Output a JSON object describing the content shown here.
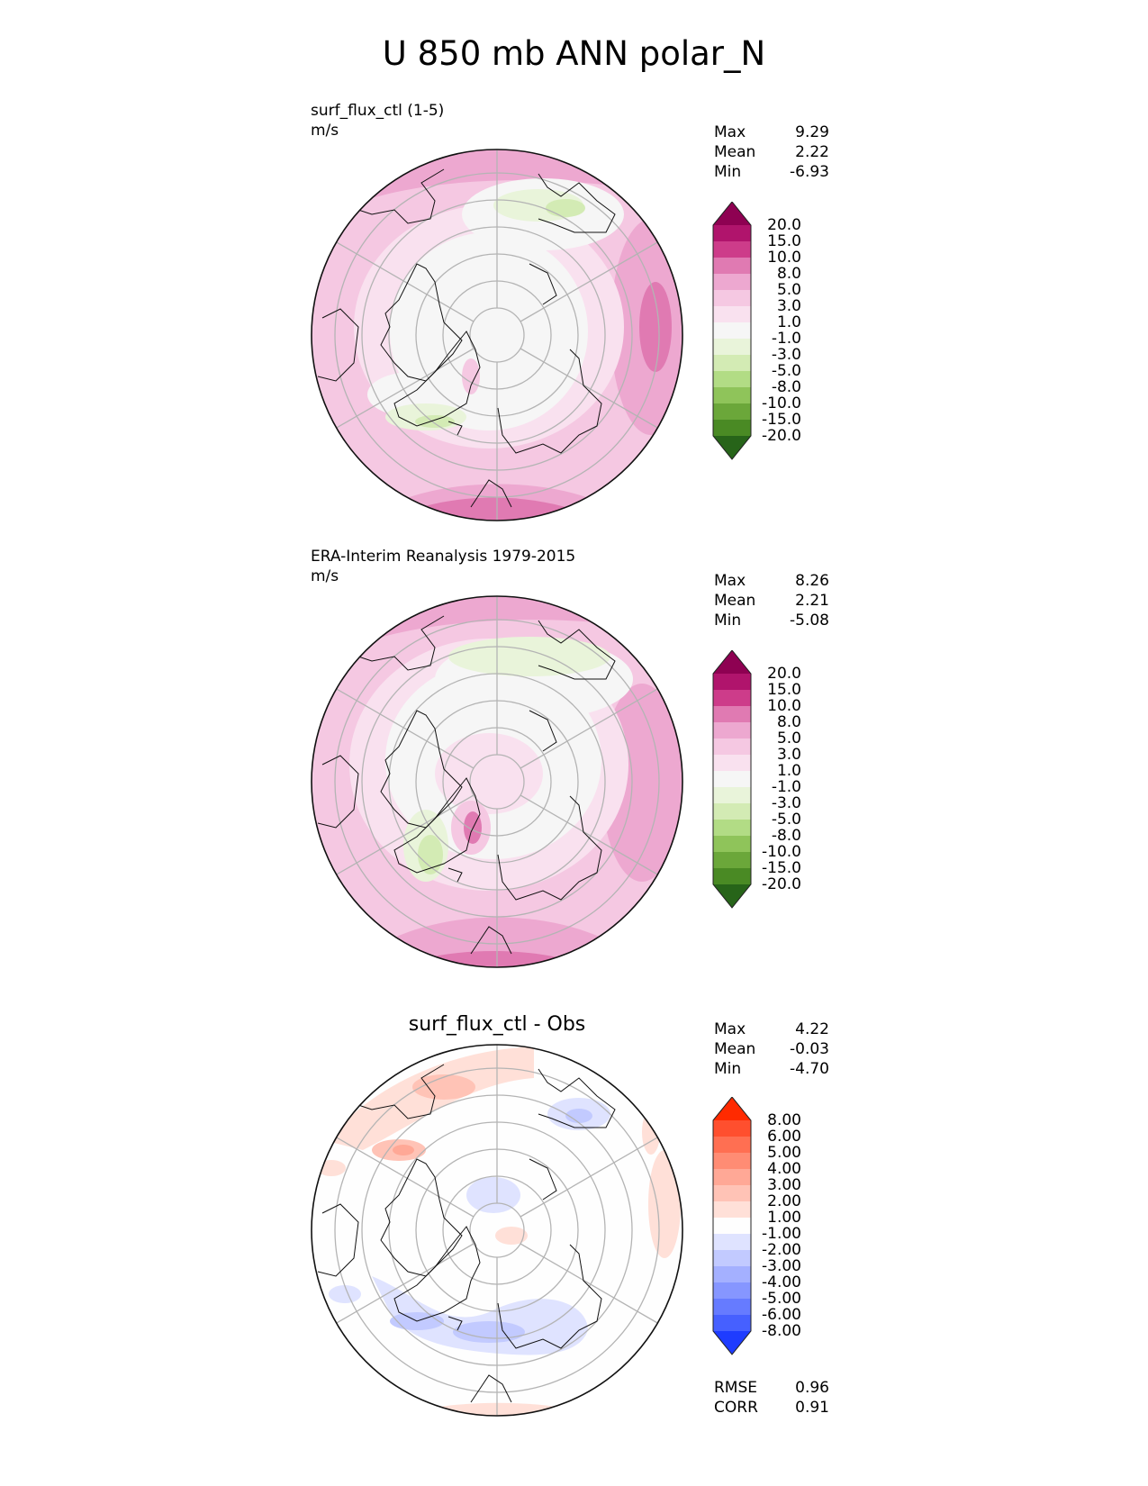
{
  "title": "U 850 mb ANN polar_N",
  "panels": [
    {
      "label": "surf_flux_ctl (1-5)",
      "units": "m/s",
      "stats": {
        "max_label": "Max",
        "max": "9.29",
        "mean_label": "Mean",
        "mean": "2.22",
        "min_label": "Min",
        "min": "-6.93"
      },
      "colorbar": {
        "ticks": [
          "20.0",
          "15.0",
          "10.0",
          "8.0",
          "5.0",
          "3.0",
          "1.0",
          "-1.0",
          "-3.0",
          "-5.0",
          "-8.0",
          "-10.0",
          "-15.0",
          "-20.0"
        ],
        "colors": [
          "#8e0152",
          "#b0146c",
          "#cd3c8a",
          "#e07ab2",
          "#eda8d0",
          "#f5c8e2",
          "#f9e1ef",
          "#f6f6f6",
          "#e9f4da",
          "#d3ebb4",
          "#b2dc85",
          "#8fc45a",
          "#6ba73a",
          "#4a8a24",
          "#276419"
        ]
      }
    },
    {
      "label": "ERA-Interim Reanalysis 1979-2015",
      "units": "m/s",
      "stats": {
        "max_label": "Max",
        "max": "8.26",
        "mean_label": "Mean",
        "mean": "2.21",
        "min_label": "Min",
        "min": "-5.08"
      },
      "colorbar": {
        "ticks": [
          "20.0",
          "15.0",
          "10.0",
          "8.0",
          "5.0",
          "3.0",
          "1.0",
          "-1.0",
          "-3.0",
          "-5.0",
          "-8.0",
          "-10.0",
          "-15.0",
          "-20.0"
        ],
        "colors": [
          "#8e0152",
          "#b0146c",
          "#cd3c8a",
          "#e07ab2",
          "#eda8d0",
          "#f5c8e2",
          "#f9e1ef",
          "#f6f6f6",
          "#e9f4da",
          "#d3ebb4",
          "#b2dc85",
          "#8fc45a",
          "#6ba73a",
          "#4a8a24",
          "#276419"
        ]
      }
    },
    {
      "title": "surf_flux_ctl - Obs",
      "stats": {
        "max_label": "Max",
        "max": "4.22",
        "mean_label": "Mean",
        "mean": "-0.03",
        "min_label": "Min",
        "min": "-4.70"
      },
      "colorbar": {
        "ticks": [
          "8.00",
          "6.00",
          "5.00",
          "4.00",
          "3.00",
          "2.00",
          "1.00",
          "-1.00",
          "-2.00",
          "-3.00",
          "-4.00",
          "-5.00",
          "-6.00",
          "-8.00"
        ],
        "colors": [
          "#ff2a00",
          "#ff4f2e",
          "#ff6f52",
          "#ff8c74",
          "#ffa896",
          "#ffc3b6",
          "#ffe0d8",
          "#fefefe",
          "#dfe3ff",
          "#c2caff",
          "#a4b0ff",
          "#8696ff",
          "#667bff",
          "#4660ff",
          "#1e3cff"
        ]
      },
      "rmse_label": "RMSE",
      "rmse": "0.96",
      "corr_label": "CORR",
      "corr": "0.91"
    }
  ]
}
